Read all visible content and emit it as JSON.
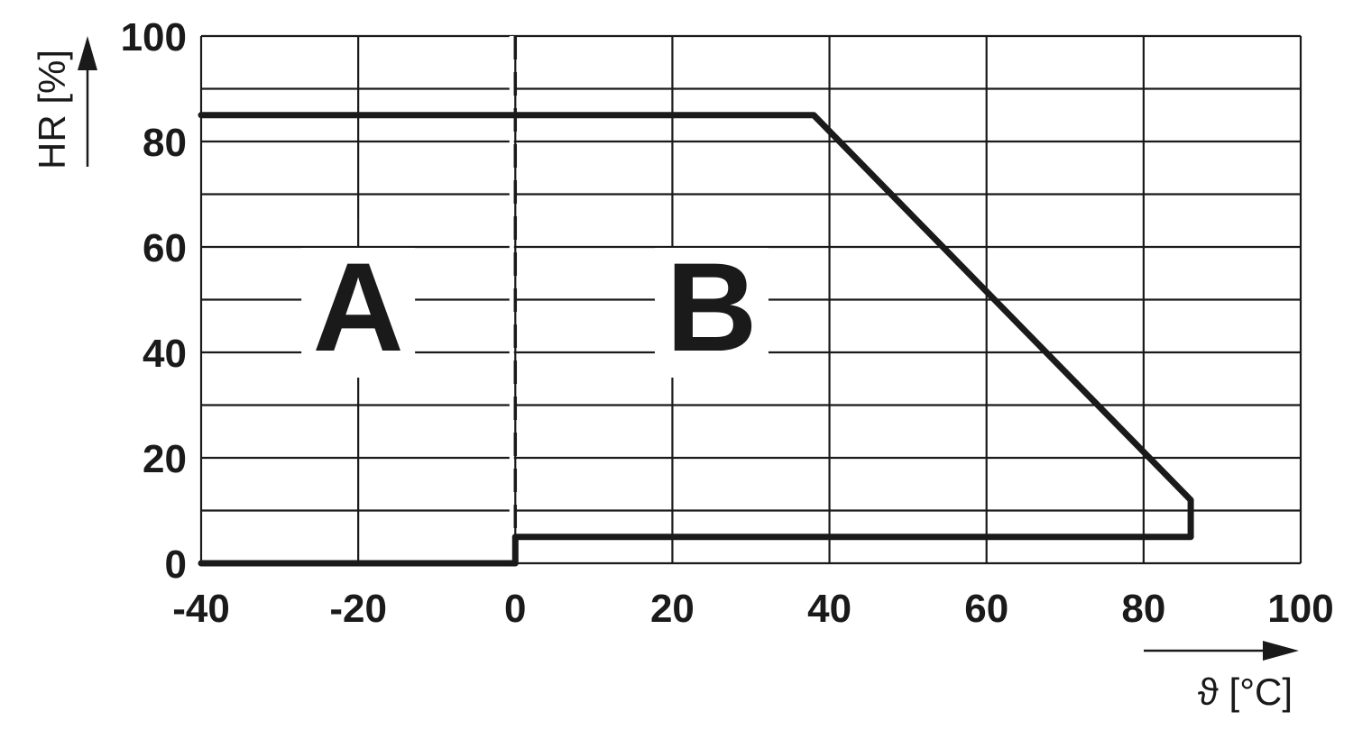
{
  "chart_data": {
    "type": "line",
    "title": "",
    "xlabel": "ϑ [°C]",
    "ylabel": "HR [%]",
    "xlim": [
      -40,
      100
    ],
    "ylim": [
      0,
      100
    ],
    "x_ticks": [
      -40,
      -20,
      0,
      20,
      40,
      60,
      80,
      100
    ],
    "y_ticks": [
      0,
      20,
      40,
      60,
      80,
      100
    ],
    "x_tick_labels": [
      "-40",
      "-20",
      "0",
      "20",
      "40",
      "60",
      "80",
      "100"
    ],
    "y_tick_labels": [
      "0",
      "20",
      "40",
      "60",
      "80",
      "100"
    ],
    "grid": {
      "x_step": 20,
      "y_step": 10
    },
    "series": [
      {
        "points": [
          [
            -40,
            85
          ],
          [
            38,
            85
          ],
          [
            86,
            12
          ],
          [
            86,
            5
          ],
          [
            0,
            5
          ],
          [
            0,
            0
          ],
          [
            -40,
            0
          ]
        ],
        "style": "solid-thick",
        "color": "#1a1a1a"
      }
    ],
    "reference_lines": [
      {
        "axis": "x",
        "value": 0,
        "style": "dashed"
      }
    ],
    "annotations": [
      {
        "text": "A",
        "x": -20,
        "y": 40
      },
      {
        "text": "B",
        "x": 25,
        "y": 40
      }
    ]
  }
}
